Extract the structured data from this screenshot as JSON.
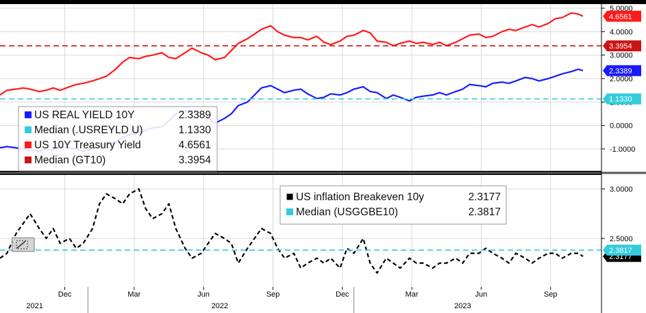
{
  "chart_data": [
    {
      "type": "line",
      "panel": "top",
      "yaxis": {
        "ylim": [
          -1.7,
          5.0
        ],
        "ticks": [
          "5.0000",
          "4.0000",
          "3.0000",
          "2.0000",
          "1.0000",
          "0.0000",
          "-1.0000"
        ],
        "tick_values": [
          5,
          4,
          3,
          2,
          1,
          0,
          -1
        ]
      },
      "series": [
        {
          "name": "US 10Y Treasury Yield",
          "color": "#ff1a1a",
          "last_label": "4.6561",
          "x": [
            0,
            0.3,
            0.7,
            1.0,
            1.3,
            1.7,
            2.0,
            2.3,
            2.6,
            3.0,
            3.3,
            3.6,
            4.0,
            4.3,
            4.6,
            5.0,
            5.3,
            5.6,
            6.0,
            6.3,
            6.6,
            7.0,
            7.3,
            7.6,
            8.0,
            8.3,
            8.7,
            9.0,
            9.3,
            9.7,
            10.0,
            10.3,
            10.7,
            11.0,
            11.3,
            11.7,
            12.0,
            12.3,
            12.7,
            13.0,
            13.3,
            13.7,
            14.0,
            14.3,
            14.7,
            15.0,
            15.3,
            15.7,
            16.0,
            16.3,
            16.7,
            17.0,
            17.3,
            17.7,
            18.0,
            18.3,
            18.7,
            19.0,
            19.3,
            19.7,
            20.0,
            20.3,
            20.7,
            21.0,
            21.3,
            21.7,
            22.0,
            22.3,
            22.7,
            23.0,
            23.3,
            23.7,
            24.0,
            24.3,
            24.7,
            25.0,
            25.2
          ],
          "values": [
            1.3,
            1.5,
            1.55,
            1.6,
            1.55,
            1.45,
            1.5,
            1.6,
            1.5,
            1.65,
            1.75,
            1.8,
            1.9,
            2.0,
            2.1,
            2.4,
            2.7,
            2.9,
            2.85,
            2.95,
            3.0,
            3.1,
            2.9,
            2.85,
            3.1,
            3.3,
            3.1,
            3.0,
            2.8,
            2.9,
            3.2,
            3.5,
            3.7,
            3.9,
            4.1,
            4.25,
            4.0,
            3.85,
            3.75,
            3.75,
            3.65,
            3.8,
            3.55,
            3.45,
            3.6,
            3.8,
            3.85,
            4.05,
            3.95,
            3.6,
            3.55,
            3.4,
            3.5,
            3.6,
            3.5,
            3.55,
            3.45,
            3.55,
            3.4,
            3.55,
            3.7,
            3.85,
            3.9,
            3.75,
            3.8,
            4.0,
            4.1,
            4.05,
            4.2,
            4.3,
            4.2,
            4.35,
            4.55,
            4.6,
            4.8,
            4.75,
            4.6561
          ]
        },
        {
          "name": "Median (GT10)",
          "color": "#cc1414",
          "dashed": true,
          "last_label": "3.3954",
          "constant": 3.3954
        },
        {
          "name": "US REAL YIELD 10Y",
          "color": "#1a1aff",
          "last_label": "2.3389",
          "x": [
            0,
            0.3,
            0.7,
            1.0,
            1.3,
            1.7,
            2.0,
            2.3,
            2.6,
            3.0,
            3.3,
            3.6,
            4.0,
            4.3,
            4.6,
            5.0,
            5.3,
            5.6,
            6.0,
            6.3,
            6.6,
            7.0,
            7.3,
            7.6,
            8.0,
            8.3,
            8.7,
            9.0,
            9.3,
            9.7,
            10.0,
            10.3,
            10.7,
            11.0,
            11.3,
            11.7,
            12.0,
            12.3,
            12.7,
            13.0,
            13.3,
            13.7,
            14.0,
            14.3,
            14.7,
            15.0,
            15.3,
            15.7,
            16.0,
            16.3,
            16.7,
            17.0,
            17.3,
            17.7,
            18.0,
            18.3,
            18.7,
            19.0,
            19.3,
            19.7,
            20.0,
            20.3,
            20.7,
            21.0,
            21.3,
            21.7,
            22.0,
            22.3,
            22.7,
            23.0,
            23.3,
            23.7,
            24.0,
            24.3,
            24.7,
            25.0,
            25.2
          ],
          "values": [
            -0.95,
            -0.9,
            -0.95,
            -1.0,
            -1.05,
            -1.1,
            -1.0,
            -1.05,
            -0.9,
            -0.95,
            -1.0,
            -1.1,
            -1.0,
            -0.9,
            -0.8,
            -0.7,
            -0.5,
            -0.4,
            -0.3,
            -0.2,
            -0.1,
            -0.05,
            0.2,
            0.5,
            0.6,
            0.65,
            0.5,
            0.3,
            0.1,
            0.3,
            0.5,
            0.85,
            1.0,
            1.3,
            1.6,
            1.7,
            1.55,
            1.4,
            1.5,
            1.55,
            1.35,
            1.15,
            1.2,
            1.35,
            1.3,
            1.4,
            1.55,
            1.65,
            1.45,
            1.4,
            1.15,
            1.3,
            1.2,
            1.05,
            1.2,
            1.25,
            1.3,
            1.4,
            1.3,
            1.45,
            1.55,
            1.75,
            1.7,
            1.65,
            1.8,
            1.85,
            1.8,
            1.9,
            2.05,
            2.0,
            1.9,
            2.0,
            2.1,
            2.2,
            2.3,
            2.4,
            2.3389
          ]
        },
        {
          "name": "Median (.USREYLD U)",
          "color": "#33ccdd",
          "dashed": true,
          "last_label": "1.1330",
          "constant": 1.133
        }
      ],
      "legend": {
        "placement": "bottom-left",
        "entries": [
          {
            "label": "US REAL YIELD 10Y",
            "value": "2.3389",
            "color": "#1a1aff"
          },
          {
            "label": "Median (.USREYLD U)",
            "value": "1.1330",
            "color": "#33ccdd"
          },
          {
            "label": "US 10Y Treasury Yield",
            "value": "4.6561",
            "color": "#ff1a1a"
          },
          {
            "label": "Median (GT10)",
            "value": "3.3954",
            "color": "#cc1414"
          }
        ]
      }
    },
    {
      "type": "line",
      "panel": "bottom",
      "yaxis": {
        "ylim": [
          2.05,
          3.1
        ],
        "ticks": [
          "3.0000",
          "2.5000"
        ],
        "tick_values": [
          3.0,
          2.5
        ]
      },
      "series": [
        {
          "name": "US inflation Breakeven 10y",
          "color": "#000000",
          "dashed": true,
          "last_label": "2.3177",
          "x": [
            0,
            0.3,
            0.7,
            1.0,
            1.3,
            1.7,
            2.0,
            2.3,
            2.6,
            3.0,
            3.3,
            3.6,
            4.0,
            4.3,
            4.6,
            5.0,
            5.3,
            5.6,
            6.0,
            6.3,
            6.6,
            7.0,
            7.3,
            7.6,
            8.0,
            8.3,
            8.7,
            9.0,
            9.3,
            9.7,
            10.0,
            10.3,
            10.7,
            11.0,
            11.3,
            11.7,
            12.0,
            12.3,
            12.7,
            13.0,
            13.3,
            13.7,
            14.0,
            14.3,
            14.7,
            15.0,
            15.3,
            15.7,
            16.0,
            16.3,
            16.7,
            17.0,
            17.3,
            17.7,
            18.0,
            18.3,
            18.7,
            19.0,
            19.3,
            19.7,
            20.0,
            20.3,
            20.7,
            21.0,
            21.3,
            21.7,
            22.0,
            22.3,
            22.7,
            23.0,
            23.3,
            23.7,
            24.0,
            24.3,
            24.7,
            25.0,
            25.2
          ],
          "values": [
            2.3,
            2.35,
            2.55,
            2.65,
            2.75,
            2.6,
            2.5,
            2.6,
            2.45,
            2.5,
            2.4,
            2.45,
            2.6,
            2.85,
            2.95,
            2.9,
            2.85,
            2.95,
            3.0,
            2.8,
            2.7,
            2.75,
            2.85,
            2.6,
            2.4,
            2.3,
            2.35,
            2.45,
            2.55,
            2.5,
            2.45,
            2.25,
            2.4,
            2.5,
            2.6,
            2.55,
            2.4,
            2.3,
            2.35,
            2.2,
            2.25,
            2.3,
            2.25,
            2.3,
            2.2,
            2.4,
            2.35,
            2.5,
            2.25,
            2.15,
            2.3,
            2.25,
            2.2,
            2.3,
            2.25,
            2.25,
            2.2,
            2.25,
            2.25,
            2.3,
            2.25,
            2.35,
            2.35,
            2.4,
            2.35,
            2.3,
            2.25,
            2.35,
            2.3,
            2.25,
            2.3,
            2.35,
            2.35,
            2.3,
            2.35,
            2.35,
            2.3177
          ]
        },
        {
          "name": "Median (USGGBE10)",
          "color": "#33ccdd",
          "dashed": true,
          "last_label": "2.3817",
          "constant": 2.3817
        }
      ],
      "legend": {
        "placement": "top-right",
        "entries": [
          {
            "label": "US inflation Breakeven 10y",
            "value": "2.3177",
            "color": "#000000"
          },
          {
            "label": "Median (USGGBE10)",
            "value": "2.3817",
            "color": "#33ccdd"
          }
        ]
      }
    }
  ],
  "xaxis": {
    "unit": "months since start of shown range",
    "xlim": [
      0,
      26.0
    ],
    "month_ticks": [
      {
        "label": "Dec",
        "month": 2.8
      },
      {
        "label": "Mar",
        "month": 5.8
      },
      {
        "label": "Jun",
        "month": 8.8
      },
      {
        "label": "Sep",
        "month": 11.8
      },
      {
        "label": "Dec",
        "month": 14.8
      },
      {
        "label": "Mar",
        "month": 17.8
      },
      {
        "label": "Jun",
        "month": 20.8
      },
      {
        "label": "Sep",
        "month": 23.8
      }
    ],
    "year_labels": [
      {
        "label": "2021",
        "month": 1.5
      },
      {
        "label": "2022",
        "month": 9.5
      },
      {
        "label": "2023",
        "month": 20.0
      }
    ],
    "year_separators": [
      3.8,
      15.3
    ]
  },
  "colors": {
    "background": "#ffffff",
    "grid": "#d8d8d8",
    "frame": "#000000"
  }
}
